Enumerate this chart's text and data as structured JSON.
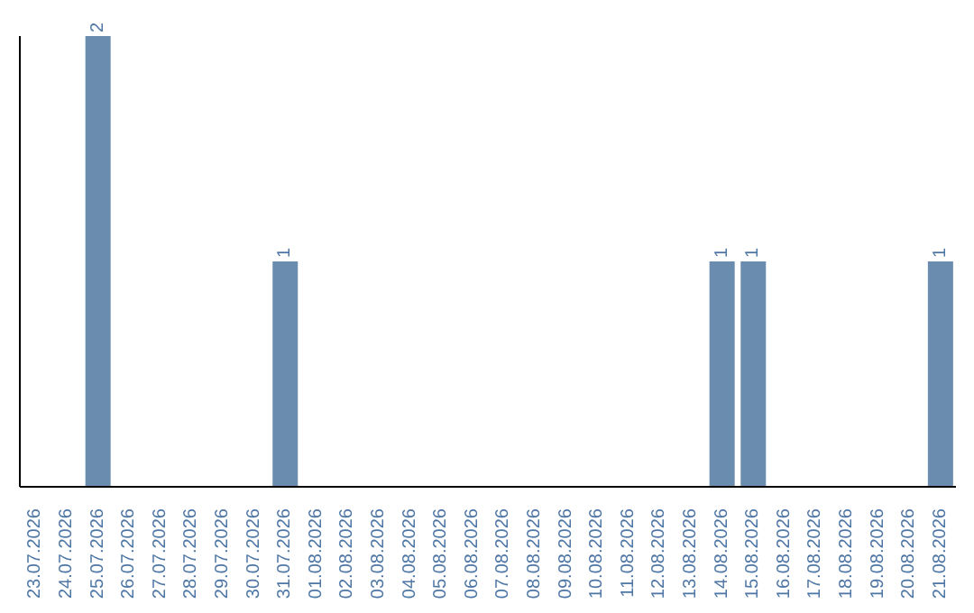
{
  "chart_data": {
    "type": "bar",
    "categories": [
      "23.07.2026",
      "24.07.2026",
      "25.07.2026",
      "26.07.2026",
      "27.07.2026",
      "28.07.2026",
      "29.07.2026",
      "30.07.2026",
      "31.07.2026",
      "01.08.2026",
      "02.08.2026",
      "03.08.2026",
      "04.08.2026",
      "05.08.2026",
      "06.08.2026",
      "07.08.2026",
      "08.08.2026",
      "09.08.2026",
      "10.08.2026",
      "11.08.2026",
      "12.08.2026",
      "13.08.2026",
      "14.08.2026",
      "15.08.2026",
      "16.08.2026",
      "17.08.2026",
      "18.08.2026",
      "19.08.2026",
      "20.08.2026",
      "21.08.2026"
    ],
    "values": [
      null,
      null,
      2,
      null,
      null,
      null,
      null,
      null,
      1,
      null,
      null,
      null,
      null,
      null,
      null,
      null,
      null,
      null,
      null,
      null,
      null,
      null,
      1,
      1,
      null,
      null,
      null,
      null,
      null,
      1
    ],
    "data_labels": true,
    "color": "#6a8caf",
    "tick_labels": "x",
    "grid": false,
    "legend": false
  }
}
